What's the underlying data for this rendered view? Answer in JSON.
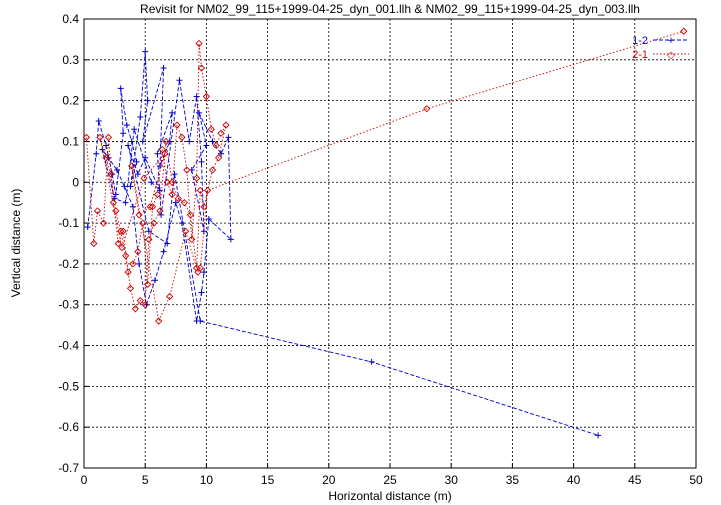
{
  "chart_data": {
    "type": "line",
    "title": "Revisit for NM02_99_115+1999-04-25_dyn_001.llh & NM02_99_115+1999-04-25_dyn_003.llh",
    "xlabel": "Horizontal distance (m)",
    "ylabel": "Vertical distance (m)",
    "xlim": [
      0,
      50
    ],
    "ylim": [
      -0.7,
      0.4
    ],
    "xticks": [
      0,
      5,
      10,
      15,
      20,
      25,
      30,
      35,
      40,
      45,
      50
    ],
    "yticks": [
      -0.7,
      -0.6,
      -0.5,
      -0.4,
      -0.3,
      -0.2,
      -0.1,
      0,
      0.1,
      0.2,
      0.3,
      0.4
    ],
    "grid": true,
    "legend_position": "top-right",
    "series": [
      {
        "name": "1-2",
        "color": "#0000cc",
        "marker": "plus",
        "line": "dashed",
        "x": [
          0.3,
          1.0,
          1.2,
          1.8,
          2.3,
          2.6,
          3.2,
          3.0,
          3.5,
          3.9,
          4.3,
          3.8,
          4.6,
          5.0,
          5.2,
          4.8,
          6.5,
          6.2,
          7.0,
          7.2,
          6.0,
          6.3,
          7.8,
          8.6,
          9.2,
          9.6,
          9.8,
          8.8,
          10.0,
          9.4,
          10.5,
          11.2,
          11.8,
          12.0,
          10.2,
          9.8,
          9.6,
          9.2,
          8.0,
          7.5,
          6.5,
          5.8,
          5.1,
          4.5,
          4.0,
          3.3,
          2.7,
          2.0,
          1.5,
          2.5,
          3.4,
          4.1,
          5.5,
          6.2,
          5.0,
          4.4,
          3.6,
          5.3,
          6.8,
          7.4,
          9.5,
          23.5,
          42.0
        ],
        "y": [
          -0.11,
          0.07,
          0.15,
          0.09,
          0.02,
          -0.03,
          0.12,
          0.23,
          0.14,
          0.1,
          0.05,
          -0.01,
          0.16,
          0.32,
          0.2,
          0.1,
          0.28,
          0.04,
          0.1,
          0.17,
          0.07,
          -0.08,
          0.25,
          0.1,
          0.21,
          0.05,
          -0.12,
          0.03,
          0.09,
          0.17,
          0.1,
          0.07,
          0.11,
          -0.14,
          -0.09,
          -0.22,
          -0.27,
          -0.34,
          -0.1,
          -0.05,
          -0.17,
          -0.24,
          -0.3,
          -0.2,
          -0.06,
          -0.01,
          0.03,
          0.06,
          0.08,
          -0.04,
          -0.05,
          0.13,
          0.0,
          -0.02,
          0.06,
          0.02,
          0.09,
          -0.12,
          -0.15,
          0.02,
          -0.34,
          -0.44,
          -0.62
        ]
      },
      {
        "name": "2-1",
        "color": "#cc0000",
        "marker": "diamond",
        "line": "dotted",
        "x": [
          0.2,
          0.8,
          1.1,
          1.6,
          2.0,
          2.4,
          2.8,
          3.2,
          3.6,
          4.0,
          4.4,
          4.8,
          5.2,
          5.6,
          6.0,
          6.4,
          6.8,
          7.2,
          7.6,
          8.0,
          8.4,
          8.8,
          9.2,
          9.4,
          9.6,
          10.0,
          10.4,
          10.8,
          11.2,
          11.6,
          11.0,
          10.5,
          9.8,
          9.5,
          9.2,
          8.7,
          8.2,
          7.7,
          7.2,
          6.7,
          6.2,
          5.7,
          5.3,
          5.0,
          4.6,
          4.2,
          3.8,
          3.4,
          3.0,
          2.6,
          2.2,
          1.8,
          1.3,
          3.1,
          4.9,
          6.6,
          5.4,
          4.5,
          3.9,
          6.1,
          7.0,
          8.3,
          9.3,
          9.5,
          10.1,
          28.0,
          49.0
        ],
        "y": [
          0.11,
          -0.15,
          -0.07,
          -0.1,
          0.11,
          -0.05,
          -0.15,
          -0.12,
          -0.22,
          -0.2,
          -0.17,
          -0.1,
          -0.25,
          -0.06,
          -0.03,
          0.08,
          0.0,
          -0.03,
          0.14,
          0.11,
          0.03,
          -0.14,
          0.01,
          0.34,
          0.28,
          0.21,
          0.13,
          0.09,
          0.12,
          0.14,
          0.06,
          0.03,
          -0.06,
          -0.02,
          -0.21,
          -0.08,
          -0.05,
          -0.04,
          0.0,
          0.1,
          -0.07,
          -0.1,
          -0.14,
          -0.3,
          -0.29,
          -0.31,
          -0.26,
          -0.18,
          -0.12,
          -0.07,
          0.02,
          0.06,
          0.11,
          -0.16,
          0.01,
          0.07,
          -0.06,
          -0.08,
          0.04,
          -0.34,
          -0.28,
          -0.12,
          -0.22,
          -0.21,
          -0.02,
          0.18,
          0.37
        ]
      }
    ]
  }
}
